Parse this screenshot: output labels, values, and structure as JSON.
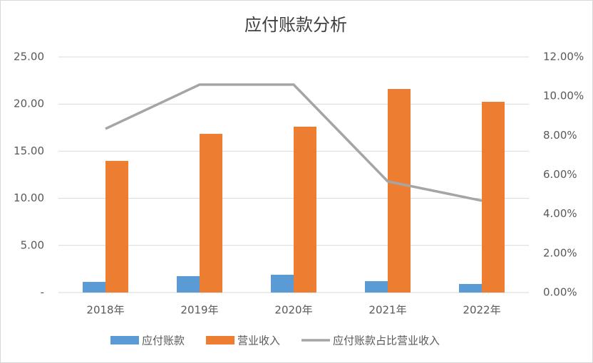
{
  "chart_data": {
    "type": "bar",
    "title": "应付账款分析",
    "categories": [
      "2018年",
      "2019年",
      "2020年",
      "2021年",
      "2022年"
    ],
    "series": [
      {
        "name": "应付账款",
        "type": "bar",
        "color": "#5b9bd5",
        "values": [
          1.13,
          1.74,
          1.89,
          1.21,
          0.91
        ]
      },
      {
        "name": "营业收入",
        "type": "bar",
        "color": "#ed7d31",
        "values": [
          13.97,
          16.84,
          17.6,
          21.6,
          20.24
        ]
      },
      {
        "name": "应付账款占比营业收入",
        "type": "line",
        "axis": "y2",
        "color": "#a5a5a5",
        "values": [
          8.34,
          10.59,
          10.59,
          5.66,
          4.68
        ]
      }
    ],
    "ylim": [
      0,
      25
    ],
    "yticks": [
      {
        "value": 0,
        "label": "-"
      },
      {
        "value": 5,
        "label": "5.00"
      },
      {
        "value": 10,
        "label": "10.00"
      },
      {
        "value": 15,
        "label": "15.00"
      },
      {
        "value": 20,
        "label": "20.00"
      },
      {
        "value": 25,
        "label": "25.00"
      }
    ],
    "y2lim": [
      0,
      12
    ],
    "y2ticks": [
      {
        "value": 0,
        "label": "0.00%"
      },
      {
        "value": 2,
        "label": "2.00%"
      },
      {
        "value": 4,
        "label": "4.00%"
      },
      {
        "value": 6,
        "label": "6.00%"
      },
      {
        "value": 8,
        "label": "8.00%"
      },
      {
        "value": 10,
        "label": "10.00%"
      },
      {
        "value": 12,
        "label": "12.00%"
      }
    ],
    "grid": true,
    "legend": "bottom"
  }
}
